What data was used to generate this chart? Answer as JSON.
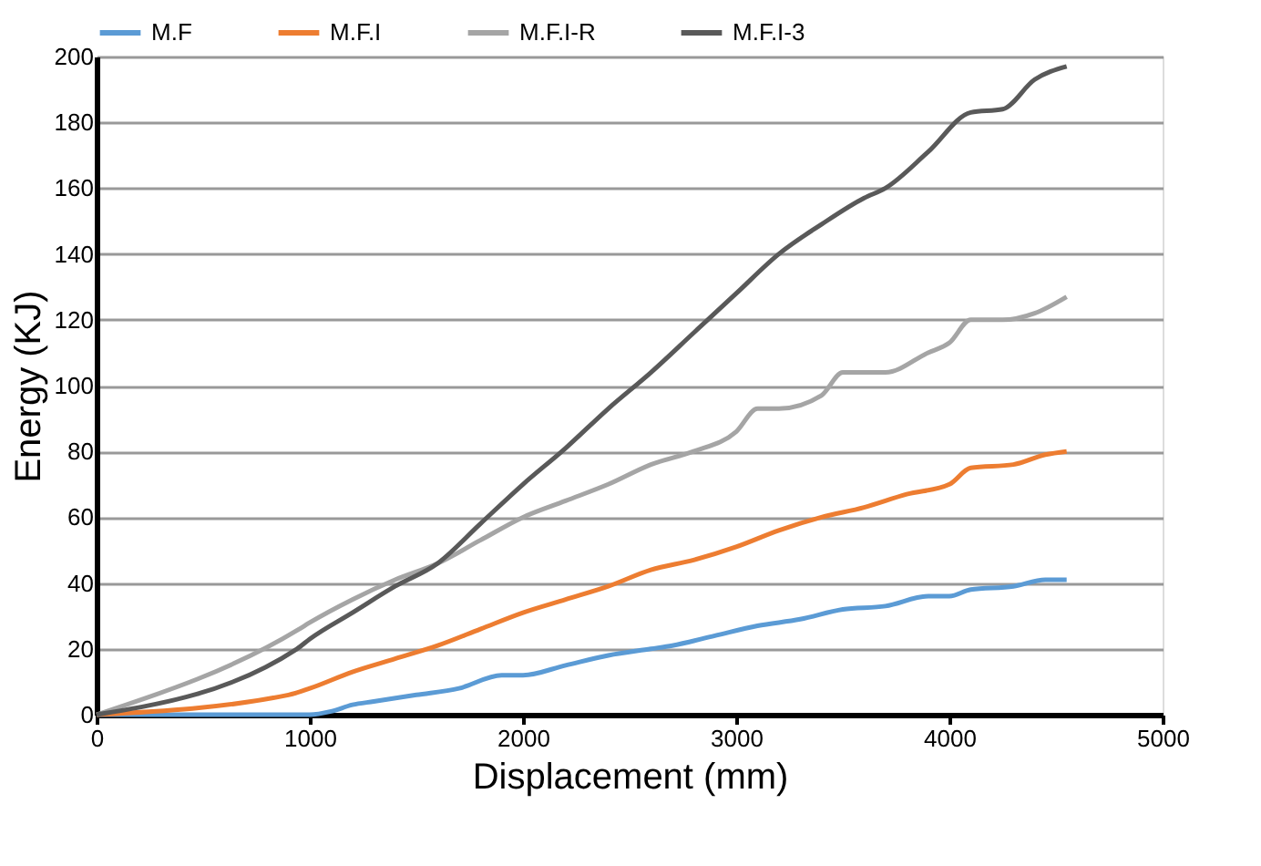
{
  "chart_data": {
    "type": "line",
    "xlabel": "Displacement (mm)",
    "ylabel": "Energy (KJ)",
    "xlim": [
      0,
      5000
    ],
    "ylim": [
      0,
      200
    ],
    "xticks": [
      0,
      1000,
      2000,
      3000,
      4000,
      5000
    ],
    "yticks": [
      0,
      20,
      40,
      60,
      80,
      100,
      120,
      140,
      160,
      180,
      200
    ],
    "grid": "y",
    "legend": "top",
    "marker": "none",
    "line_style": "solid",
    "series": [
      {
        "name": "M.F",
        "color": "#5b9bd5",
        "x": [
          0,
          1000,
          1100,
          1200,
          1300,
          1500,
          1700,
          1900,
          2000,
          2200,
          2400,
          2600,
          2700,
          2900,
          3100,
          3300,
          3500,
          3700,
          3900,
          4000,
          4100,
          4300,
          4450,
          4550
        ],
        "values": [
          0,
          0,
          1,
          3,
          4,
          6,
          8,
          12,
          12,
          15,
          18,
          20,
          21,
          24,
          27,
          29,
          32,
          33,
          36,
          36,
          38,
          39,
          41,
          41
        ]
      },
      {
        "name": "M.F.I",
        "color": "#ed7d31",
        "x": [
          0,
          900,
          1000,
          1200,
          1400,
          1600,
          1800,
          2000,
          2200,
          2400,
          2600,
          2800,
          3000,
          3200,
          3400,
          3600,
          3800,
          4000,
          4100,
          4300,
          4450,
          4550
        ],
        "values": [
          0,
          6,
          8,
          13,
          17,
          21,
          26,
          31,
          35,
          39,
          44,
          47,
          51,
          56,
          60,
          63,
          67,
          70,
          75,
          76,
          79,
          80
        ]
      },
      {
        "name": "M.F.I-R",
        "color": "#a5a5a5",
        "x": [
          0,
          950,
          1000,
          1200,
          1400,
          1600,
          1800,
          2000,
          2200,
          2400,
          2600,
          2800,
          3000,
          3100,
          3200,
          3400,
          3500,
          3700,
          3900,
          4000,
          4100,
          4250,
          4400,
          4550
        ],
        "values": [
          0,
          26,
          28,
          35,
          41,
          46,
          53,
          60,
          65,
          70,
          76,
          80,
          86,
          93,
          93,
          97,
          104,
          104,
          110,
          113,
          120,
          120,
          122,
          127
        ]
      },
      {
        "name": "M.F.I-3",
        "color": "#595959",
        "x": [
          0,
          940,
          1000,
          1200,
          1400,
          1600,
          1800,
          2000,
          2200,
          2400,
          2600,
          2800,
          3000,
          3200,
          3400,
          3600,
          3700,
          3900,
          4100,
          4250,
          4400,
          4550
        ],
        "values": [
          0,
          20,
          23,
          31,
          39,
          46,
          58,
          70,
          81,
          93,
          104,
          116,
          128,
          140,
          149,
          157,
          160,
          171,
          183,
          184,
          193,
          197
        ]
      }
    ]
  }
}
